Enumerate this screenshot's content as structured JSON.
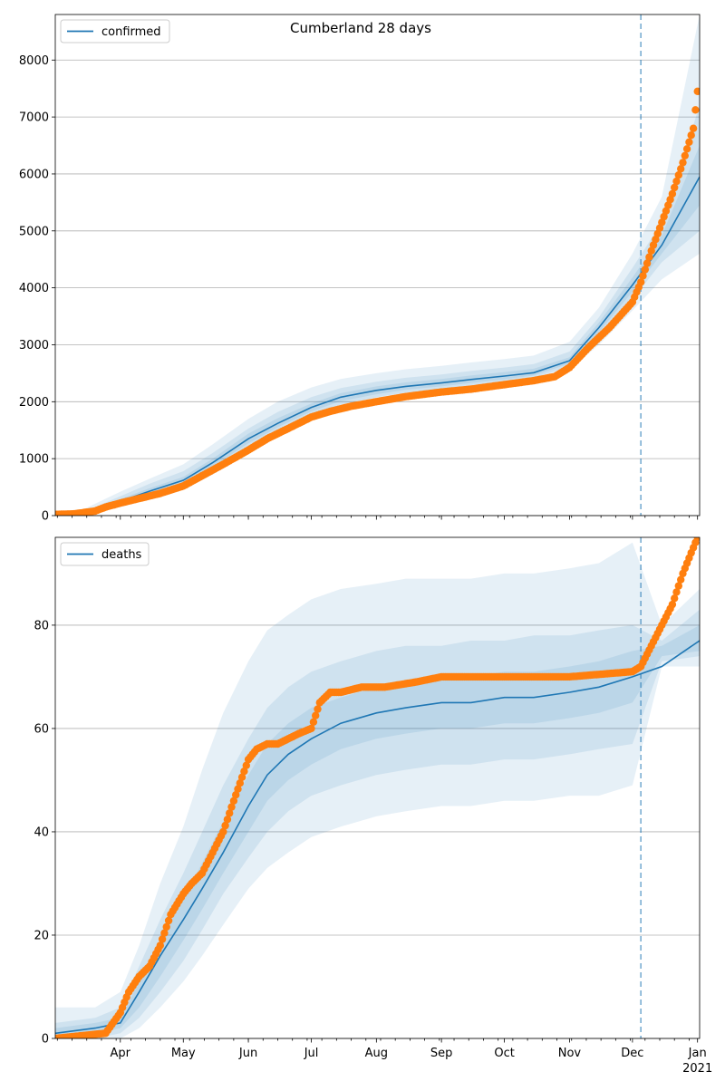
{
  "figure": {
    "title": "Cumberland 28 days"
  },
  "x_ticks": [
    {
      "label": "Apr",
      "date": "2020-04-01"
    },
    {
      "label": "May",
      "date": "2020-05-01"
    },
    {
      "label": "Jun",
      "date": "2020-06-01"
    },
    {
      "label": "Jul",
      "date": "2020-07-01"
    },
    {
      "label": "Aug",
      "date": "2020-08-01"
    },
    {
      "label": "Sep",
      "date": "2020-09-01"
    },
    {
      "label": "Oct",
      "date": "2020-10-01"
    },
    {
      "label": "Nov",
      "date": "2020-11-01"
    },
    {
      "label": "Dec",
      "date": "2020-12-01"
    },
    {
      "label": "Jan",
      "sublabel": "2021",
      "date": "2021-01-01"
    }
  ],
  "chart_data": [
    {
      "type": "line",
      "title": "Cumberland 28 days",
      "legend": {
        "entries": [
          "confirmed"
        ],
        "placement": "upper left"
      },
      "xlim": [
        "2020-03-01",
        "2021-01-02"
      ],
      "ylim": [
        0,
        8800
      ],
      "yticks": [
        0,
        1000,
        2000,
        3000,
        4000,
        5000,
        6000,
        7000,
        8000
      ],
      "grid": "horizontal",
      "forecast_start": "2020-12-05",
      "model": {
        "name": "confirmed",
        "color": "#1f77b4",
        "x": [
          "2020-03-01",
          "2020-03-15",
          "2020-04-01",
          "2020-04-15",
          "2020-05-01",
          "2020-05-15",
          "2020-06-01",
          "2020-06-15",
          "2020-07-01",
          "2020-07-15",
          "2020-08-01",
          "2020-08-15",
          "2020-09-01",
          "2020-09-15",
          "2020-10-01",
          "2020-10-15",
          "2020-11-01",
          "2020-11-15",
          "2020-12-01",
          "2020-12-15",
          "2021-01-02"
        ],
        "median": [
          5,
          20,
          250,
          430,
          620,
          930,
          1350,
          1620,
          1900,
          2080,
          2200,
          2270,
          2330,
          2390,
          2450,
          2510,
          2720,
          3300,
          4050,
          4750,
          5950
        ],
        "bands": [
          {
            "lower": [
              0,
              0,
              150,
              300,
              450,
              720,
              1100,
              1380,
              1680,
              1880,
              2020,
              2100,
              2170,
              2230,
              2290,
              2360,
              2560,
              3000,
              3600,
              4150,
              4600
            ],
            "upper": [
              60,
              120,
              420,
              650,
              900,
              1250,
              1700,
              2000,
              2250,
              2400,
              2500,
              2570,
              2630,
              2690,
              2750,
              2810,
              3050,
              3650,
              4600,
              5600,
              8800
            ]
          },
          {
            "lower": [
              0,
              5,
              190,
              350,
              520,
              800,
              1200,
              1480,
              1760,
              1950,
              2080,
              2160,
              2230,
              2290,
              2350,
              2420,
              2620,
              3120,
              3800,
              4450,
              5000
            ],
            "upper": [
              30,
              70,
              340,
              560,
              780,
              1100,
              1530,
              1820,
              2080,
              2240,
              2350,
              2420,
              2480,
              2540,
              2600,
              2660,
              2880,
              3480,
              4350,
              5150,
              7200
            ]
          },
          {
            "lower": [
              0,
              10,
              220,
              390,
              570,
              860,
              1270,
              1550,
              1830,
              2010,
              2130,
              2210,
              2270,
              2330,
              2390,
              2460,
              2670,
              3220,
              3930,
              4600,
              5450
            ],
            "upper": [
              15,
              40,
              290,
              480,
              680,
              1000,
              1440,
              1710,
              1970,
              2150,
              2270,
              2340,
              2400,
              2460,
              2520,
              2580,
              2780,
              3390,
              4180,
              4920,
              6500
            ]
          }
        ]
      },
      "observed": {
        "color": "#ff7f0e",
        "x": [
          "2020-03-01",
          "2020-03-10",
          "2020-03-20",
          "2020-03-25",
          "2020-04-01",
          "2020-04-10",
          "2020-04-20",
          "2020-05-01",
          "2020-05-10",
          "2020-05-20",
          "2020-06-01",
          "2020-06-10",
          "2020-06-20",
          "2020-07-01",
          "2020-07-10",
          "2020-07-20",
          "2020-08-01",
          "2020-08-15",
          "2020-09-01",
          "2020-09-15",
          "2020-10-01",
          "2020-10-15",
          "2020-10-25",
          "2020-11-01",
          "2020-11-10",
          "2020-11-20",
          "2020-12-01",
          "2020-12-05",
          "2020-12-10",
          "2020-12-15",
          "2020-12-20",
          "2020-12-25",
          "2020-12-30",
          "2021-01-01"
        ],
        "values": [
          20,
          30,
          80,
          150,
          220,
          300,
          390,
          520,
          700,
          900,
          1150,
          1350,
          1530,
          1730,
          1830,
          1920,
          2000,
          2090,
          2170,
          2220,
          2300,
          2370,
          2440,
          2600,
          2950,
          3300,
          3750,
          4100,
          4650,
          5150,
          5650,
          6200,
          6800,
          7450
        ]
      }
    },
    {
      "type": "line",
      "legend": {
        "entries": [
          "deaths"
        ],
        "placement": "upper left"
      },
      "xlim": [
        "2020-03-01",
        "2021-01-02"
      ],
      "ylim": [
        0,
        97
      ],
      "yticks": [
        0,
        20,
        40,
        60,
        80
      ],
      "grid": "horizontal",
      "forecast_start": "2020-12-05",
      "model": {
        "name": "deaths",
        "color": "#1f77b4",
        "x": [
          "2020-03-01",
          "2020-03-20",
          "2020-04-01",
          "2020-04-10",
          "2020-04-20",
          "2020-05-01",
          "2020-05-10",
          "2020-05-20",
          "2020-06-01",
          "2020-06-10",
          "2020-06-20",
          "2020-07-01",
          "2020-07-15",
          "2020-08-01",
          "2020-08-15",
          "2020-09-01",
          "2020-09-15",
          "2020-10-01",
          "2020-10-15",
          "2020-11-01",
          "2020-11-15",
          "2020-12-01",
          "2020-12-15",
          "2021-01-02"
        ],
        "median": [
          1,
          2,
          3,
          9,
          16,
          23,
          29,
          36,
          45,
          51,
          55,
          58,
          61,
          63,
          64,
          65,
          65,
          66,
          66,
          67,
          68,
          70,
          72,
          77
        ],
        "bands": [
          {
            "lower": [
              0,
              0,
              0,
              2,
              6,
              11,
              16,
              22,
              29,
              33,
              36,
              39,
              41,
              43,
              44,
              45,
              45,
              46,
              46,
              47,
              47,
              49,
              72,
              72
            ],
            "upper": [
              6,
              6,
              9,
              18,
              30,
              41,
              52,
              63,
              73,
              79,
              82,
              85,
              87,
              88,
              89,
              89,
              89,
              90,
              90,
              91,
              92,
              96,
              80,
              87
            ]
          },
          {
            "lower": [
              0,
              0,
              1,
              4,
              9,
              15,
              21,
              28,
              35,
              40,
              44,
              47,
              49,
              51,
              52,
              53,
              53,
              54,
              54,
              55,
              56,
              57,
              73,
              74
            ],
            "upper": [
              3,
              4,
              6,
              14,
              23,
              32,
              40,
              49,
              58,
              64,
              68,
              71,
              73,
              75,
              76,
              76,
              77,
              77,
              78,
              78,
              79,
              80,
              77,
              83
            ]
          },
          {
            "lower": [
              0,
              1,
              2,
              6,
              12,
              19,
              25,
              32,
              40,
              46,
              50,
              53,
              56,
              58,
              59,
              60,
              60,
              61,
              61,
              62,
              63,
              65,
              74,
              75
            ],
            "upper": [
              2,
              3,
              4,
              11,
              19,
              27,
              34,
              42,
              51,
              57,
              61,
              64,
              66,
              68,
              69,
              70,
              70,
              71,
              71,
              72,
              73,
              75,
              76,
              80
            ]
          }
        ]
      },
      "observed": {
        "color": "#ff7f0e",
        "x": [
          "2020-03-01",
          "2020-03-25",
          "2020-04-01",
          "2020-04-05",
          "2020-04-10",
          "2020-04-15",
          "2020-04-20",
          "2020-04-25",
          "2020-05-01",
          "2020-05-05",
          "2020-05-10",
          "2020-05-15",
          "2020-05-20",
          "2020-05-25",
          "2020-06-01",
          "2020-06-05",
          "2020-06-10",
          "2020-06-15",
          "2020-06-20",
          "2020-06-25",
          "2020-07-01",
          "2020-07-05",
          "2020-07-10",
          "2020-07-15",
          "2020-07-25",
          "2020-08-05",
          "2020-08-20",
          "2020-09-01",
          "2020-10-01",
          "2020-11-01",
          "2020-12-01",
          "2020-12-05",
          "2020-12-10",
          "2020-12-15",
          "2020-12-20",
          "2020-12-25",
          "2021-01-01"
        ],
        "values": [
          0,
          1,
          5,
          9,
          12,
          14,
          18,
          24,
          28,
          30,
          32,
          36,
          40,
          46,
          54,
          56,
          57,
          57,
          58,
          59,
          60,
          65,
          67,
          67,
          68,
          68,
          69,
          70,
          70,
          70,
          71,
          72,
          76,
          80,
          84,
          90,
          97
        ]
      }
    }
  ]
}
